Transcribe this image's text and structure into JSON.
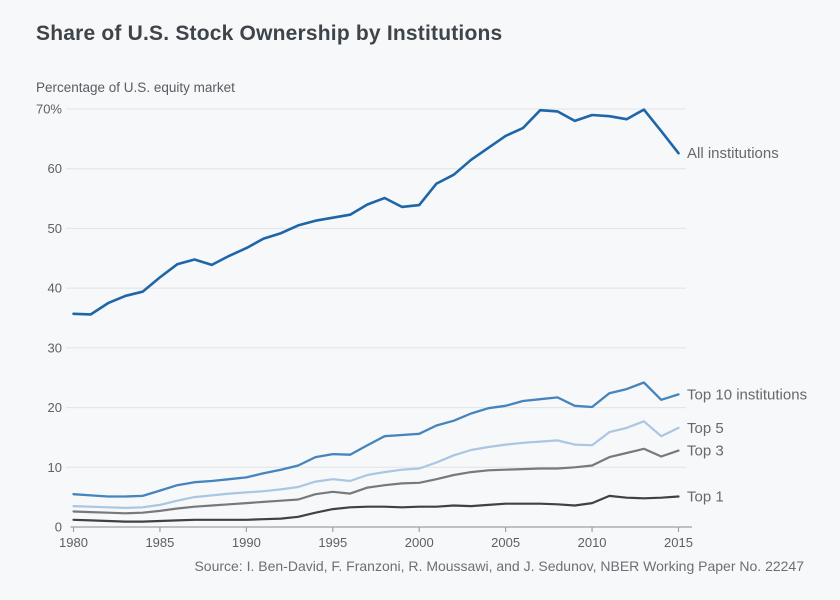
{
  "title": "Share of U.S. Stock Ownership by Institutions",
  "y_axis_caption": "Percentage of U.S. equity market",
  "source": "Source: I. Ben-David, F. Franzoni, R. Moussawi, and J. Sedunov, NBER Working Paper No. 22247",
  "colors": {
    "background": "#f7f8f9",
    "gridline": "#e0e3e6",
    "axis": "#9ba1a7",
    "title_text": "#3d444a",
    "label_text": "#5a6167"
  },
  "chart_data": {
    "type": "line",
    "title": "Share of U.S. Stock Ownership by Institutions",
    "ylabel": "Percentage of U.S. equity market",
    "xlabel": "",
    "grid": "horizontal",
    "legend_position": "right-of-line-end",
    "ylim": [
      0,
      70
    ],
    "xlim": [
      1980,
      2015
    ],
    "yticks": [
      0,
      10,
      20,
      30,
      40,
      50,
      60,
      70
    ],
    "ytick_labels": [
      "0",
      "10",
      "20",
      "30",
      "40",
      "50",
      "60",
      "70%"
    ],
    "xticks": [
      1980,
      1985,
      1990,
      1995,
      2000,
      2005,
      2010,
      2015
    ],
    "x": [
      1980,
      1981,
      1982,
      1983,
      1984,
      1985,
      1986,
      1987,
      1988,
      1989,
      1990,
      1991,
      1992,
      1993,
      1994,
      1995,
      1996,
      1997,
      1998,
      1999,
      2000,
      2001,
      2002,
      2003,
      2004,
      2005,
      2006,
      2007,
      2008,
      2009,
      2010,
      2011,
      2012,
      2013,
      2014,
      2015
    ],
    "series": [
      {
        "name": "All institutions",
        "color": "#1e66a7",
        "stroke_width": 2.6,
        "values": [
          35.7,
          35.6,
          37.5,
          38.7,
          39.4,
          41.8,
          44.0,
          44.8,
          43.9,
          45.4,
          46.7,
          48.3,
          49.2,
          50.5,
          51.3,
          51.8,
          52.3,
          54.0,
          55.1,
          53.6,
          53.9,
          57.5,
          59.0,
          61.5,
          63.5,
          65.5,
          66.8,
          69.8,
          69.6,
          68.0,
          69.0,
          68.8,
          68.3,
          69.9,
          66.3,
          62.6
        ]
      },
      {
        "name": "Top 10 institutions",
        "color": "#4584bd",
        "stroke_width": 2.3,
        "values": [
          5.5,
          5.3,
          5.1,
          5.1,
          5.2,
          6.1,
          7.0,
          7.5,
          7.7,
          8.0,
          8.3,
          9.0,
          9.6,
          10.3,
          11.7,
          12.2,
          12.1,
          13.7,
          15.2,
          15.4,
          15.6,
          17.0,
          17.8,
          19.0,
          19.9,
          20.3,
          21.1,
          21.4,
          21.7,
          20.3,
          20.1,
          22.4,
          23.1,
          24.2,
          21.3,
          22.2
        ]
      },
      {
        "name": "Top 5",
        "color": "#a9c6e3",
        "stroke_width": 2.2,
        "values": [
          3.5,
          3.4,
          3.3,
          3.2,
          3.3,
          3.7,
          4.4,
          5.0,
          5.3,
          5.6,
          5.8,
          6.0,
          6.3,
          6.7,
          7.6,
          8.0,
          7.7,
          8.7,
          9.2,
          9.6,
          9.8,
          10.8,
          12.0,
          12.9,
          13.4,
          13.8,
          14.1,
          14.3,
          14.5,
          13.8,
          13.7,
          15.9,
          16.6,
          17.7,
          15.2,
          16.6
        ]
      },
      {
        "name": "Top 3",
        "color": "#77797c",
        "stroke_width": 2.2,
        "values": [
          2.6,
          2.5,
          2.4,
          2.3,
          2.4,
          2.7,
          3.1,
          3.4,
          3.6,
          3.8,
          4.0,
          4.2,
          4.4,
          4.6,
          5.5,
          5.9,
          5.6,
          6.6,
          7.0,
          7.3,
          7.4,
          8.0,
          8.7,
          9.2,
          9.5,
          9.6,
          9.7,
          9.8,
          9.8,
          10.0,
          10.3,
          11.7,
          12.4,
          13.1,
          11.8,
          12.8
        ]
      },
      {
        "name": "Top 1",
        "color": "#3f4245",
        "stroke_width": 2.2,
        "values": [
          1.2,
          1.1,
          1.0,
          0.9,
          0.9,
          1.0,
          1.1,
          1.2,
          1.2,
          1.2,
          1.2,
          1.3,
          1.4,
          1.7,
          2.4,
          3.0,
          3.3,
          3.4,
          3.4,
          3.3,
          3.4,
          3.4,
          3.6,
          3.5,
          3.7,
          3.9,
          3.9,
          3.9,
          3.8,
          3.6,
          4.0,
          5.2,
          4.9,
          4.8,
          4.9,
          5.1
        ]
      }
    ]
  }
}
